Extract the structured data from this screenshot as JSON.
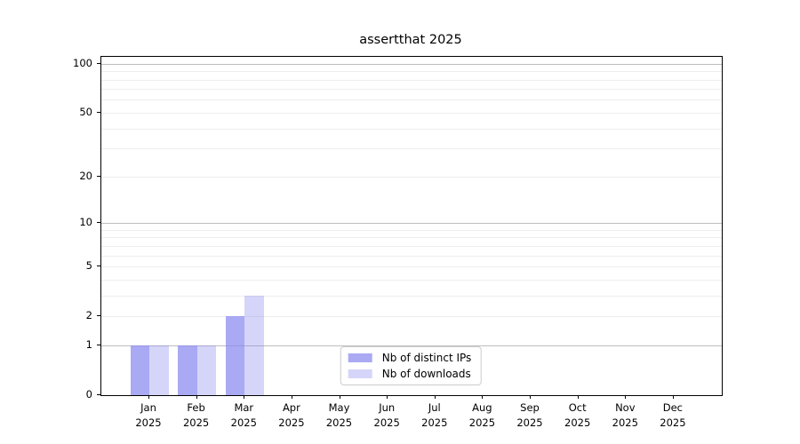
{
  "chart_data": {
    "type": "bar",
    "title": "assertthat 2025",
    "categories": [
      "Jan",
      "Feb",
      "Mar",
      "Apr",
      "May",
      "Jun",
      "Jul",
      "Aug",
      "Sep",
      "Oct",
      "Nov",
      "Dec"
    ],
    "category_year": "2025",
    "series": [
      {
        "name": "Nb of distinct IPs",
        "color": "#8888f0",
        "alpha": 0.72,
        "values": [
          1,
          1,
          2,
          0,
          0,
          0,
          0,
          0,
          0,
          0,
          0,
          0
        ]
      },
      {
        "name": "Nb of downloads",
        "color": "#8888f0",
        "alpha": 0.35,
        "values": [
          1,
          1,
          3,
          0,
          0,
          0,
          0,
          0,
          0,
          0,
          0,
          0
        ]
      }
    ],
    "xlabel": "",
    "ylabel": "",
    "y_scale": "log1p",
    "y_ticks": [
      0,
      1,
      2,
      5,
      10,
      20,
      50,
      100
    ],
    "y_max": 110,
    "grid": "horizontal",
    "grid_major_values": [
      1,
      10,
      100
    ],
    "grid_minor_values": [
      2,
      3,
      4,
      5,
      6,
      7,
      8,
      9,
      20,
      30,
      40,
      50,
      60,
      70,
      80,
      90
    ],
    "legend_position": "lower center",
    "colors": {
      "grid_major": "#bdbdbd",
      "grid_minor": "#ededed",
      "axis": "#000000",
      "text": "#000000",
      "background": "#ffffff"
    }
  }
}
